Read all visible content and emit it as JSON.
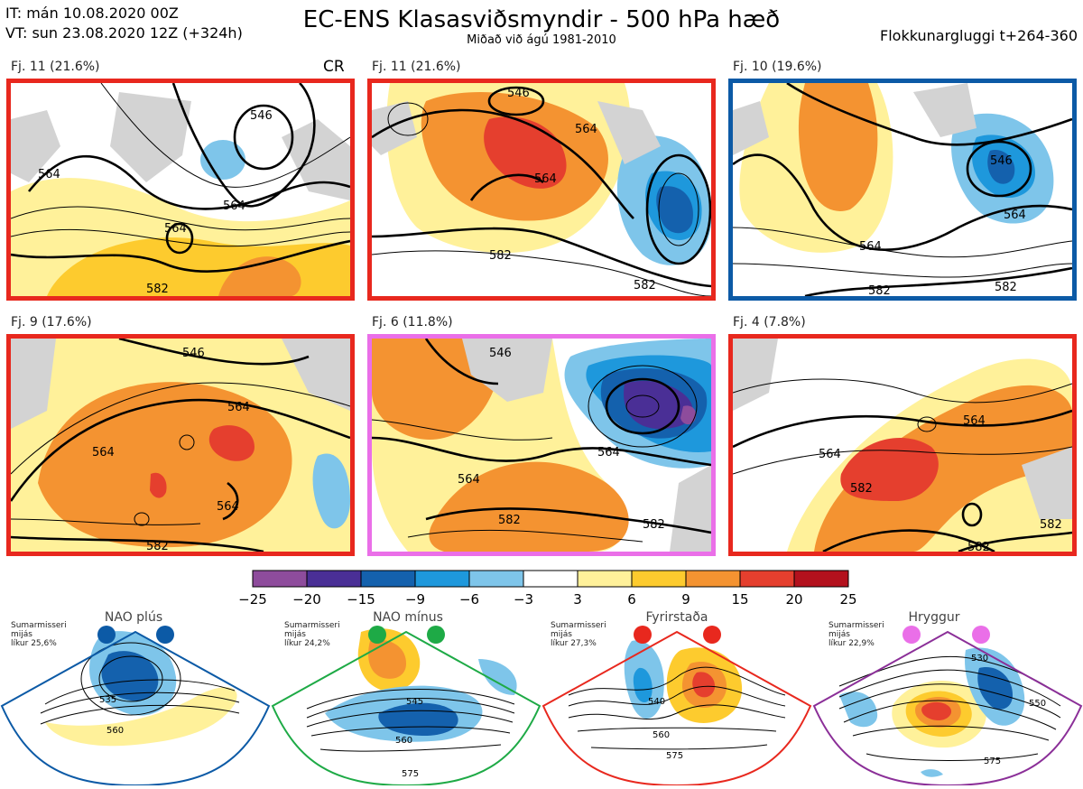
{
  "header": {
    "it": "IT: mán 10.08.2020 00Z",
    "vt": "VT: sun 23.08.2020 12Z  (+324h)",
    "title": "EC-ENS Klasasviðsmyndir - 500 hPa hæð",
    "subtitle": "Miðað við ágú 1981-2010",
    "window": "Flokkunargluggi t+264-360"
  },
  "panels": [
    {
      "label": "Fj. 11 (21.6%)",
      "border": "#e8281e",
      "badge": "CR",
      "contours": [
        "546",
        "564",
        "564",
        "564",
        "582"
      ]
    },
    {
      "label": "Fj. 11 (21.6%)",
      "border": "#e8281e",
      "badge": "",
      "contours": [
        "564",
        "564",
        "546",
        "582",
        "582"
      ]
    },
    {
      "label": "Fj. 10 (19.6%)",
      "border": "#0c5aa6",
      "badge": "",
      "contours": [
        "546",
        "564",
        "564",
        "582",
        "582"
      ]
    },
    {
      "label": "Fj. 9 (17.6%)",
      "border": "#e8281e",
      "badge": "",
      "contours": [
        "546",
        "564",
        "564",
        "564",
        "582"
      ]
    },
    {
      "label": "Fj. 6 (11.8%)",
      "border": "#ea6fe8",
      "badge": "",
      "contours": [
        "564",
        "564",
        "582",
        "582",
        "546"
      ]
    },
    {
      "label": "Fj. 4 (7.8%)",
      "border": "#e8281e",
      "badge": "",
      "contours": [
        "564",
        "564",
        "582",
        "582",
        "582"
      ]
    }
  ],
  "colorbar": {
    "ticks": [
      "−25",
      "−20",
      "−15",
      "−9",
      "−6",
      "−3",
      "3",
      "6",
      "9",
      "15",
      "20",
      "25"
    ],
    "colors": [
      "#8e4c9c",
      "#4a2f96",
      "#1461ad",
      "#1e98dc",
      "#7ec5ea",
      "#ffffff",
      "#fff19a",
      "#fdcb2e",
      "#f49331",
      "#e53f2e",
      "#b3111d"
    ]
  },
  "regimes": [
    {
      "title": "NAO plús",
      "note": [
        "Sumarmisseri",
        "mijás",
        "líkur 25,6%"
      ],
      "color": "#0c5aa6",
      "contours": [
        "535",
        "560"
      ]
    },
    {
      "title": "NAO mínus",
      "note": [
        "Sumarmisseri",
        "mijás",
        "líkur 24,2%"
      ],
      "color": "#1eaa46",
      "contours": [
        "545",
        "560",
        "575"
      ]
    },
    {
      "title": "Fyrirstaða",
      "note": [
        "Sumarmisseri",
        "mijás",
        "líkur 27,3%"
      ],
      "color": "#e8281e",
      "contours": [
        "540",
        "560",
        "575"
      ]
    },
    {
      "title": "Hryggur",
      "note": [
        "Sumarmisseri",
        "mijás",
        "líkur 22,9%"
      ],
      "color": "#ea6fe8",
      "contours": [
        "530",
        "550",
        "575"
      ]
    }
  ]
}
